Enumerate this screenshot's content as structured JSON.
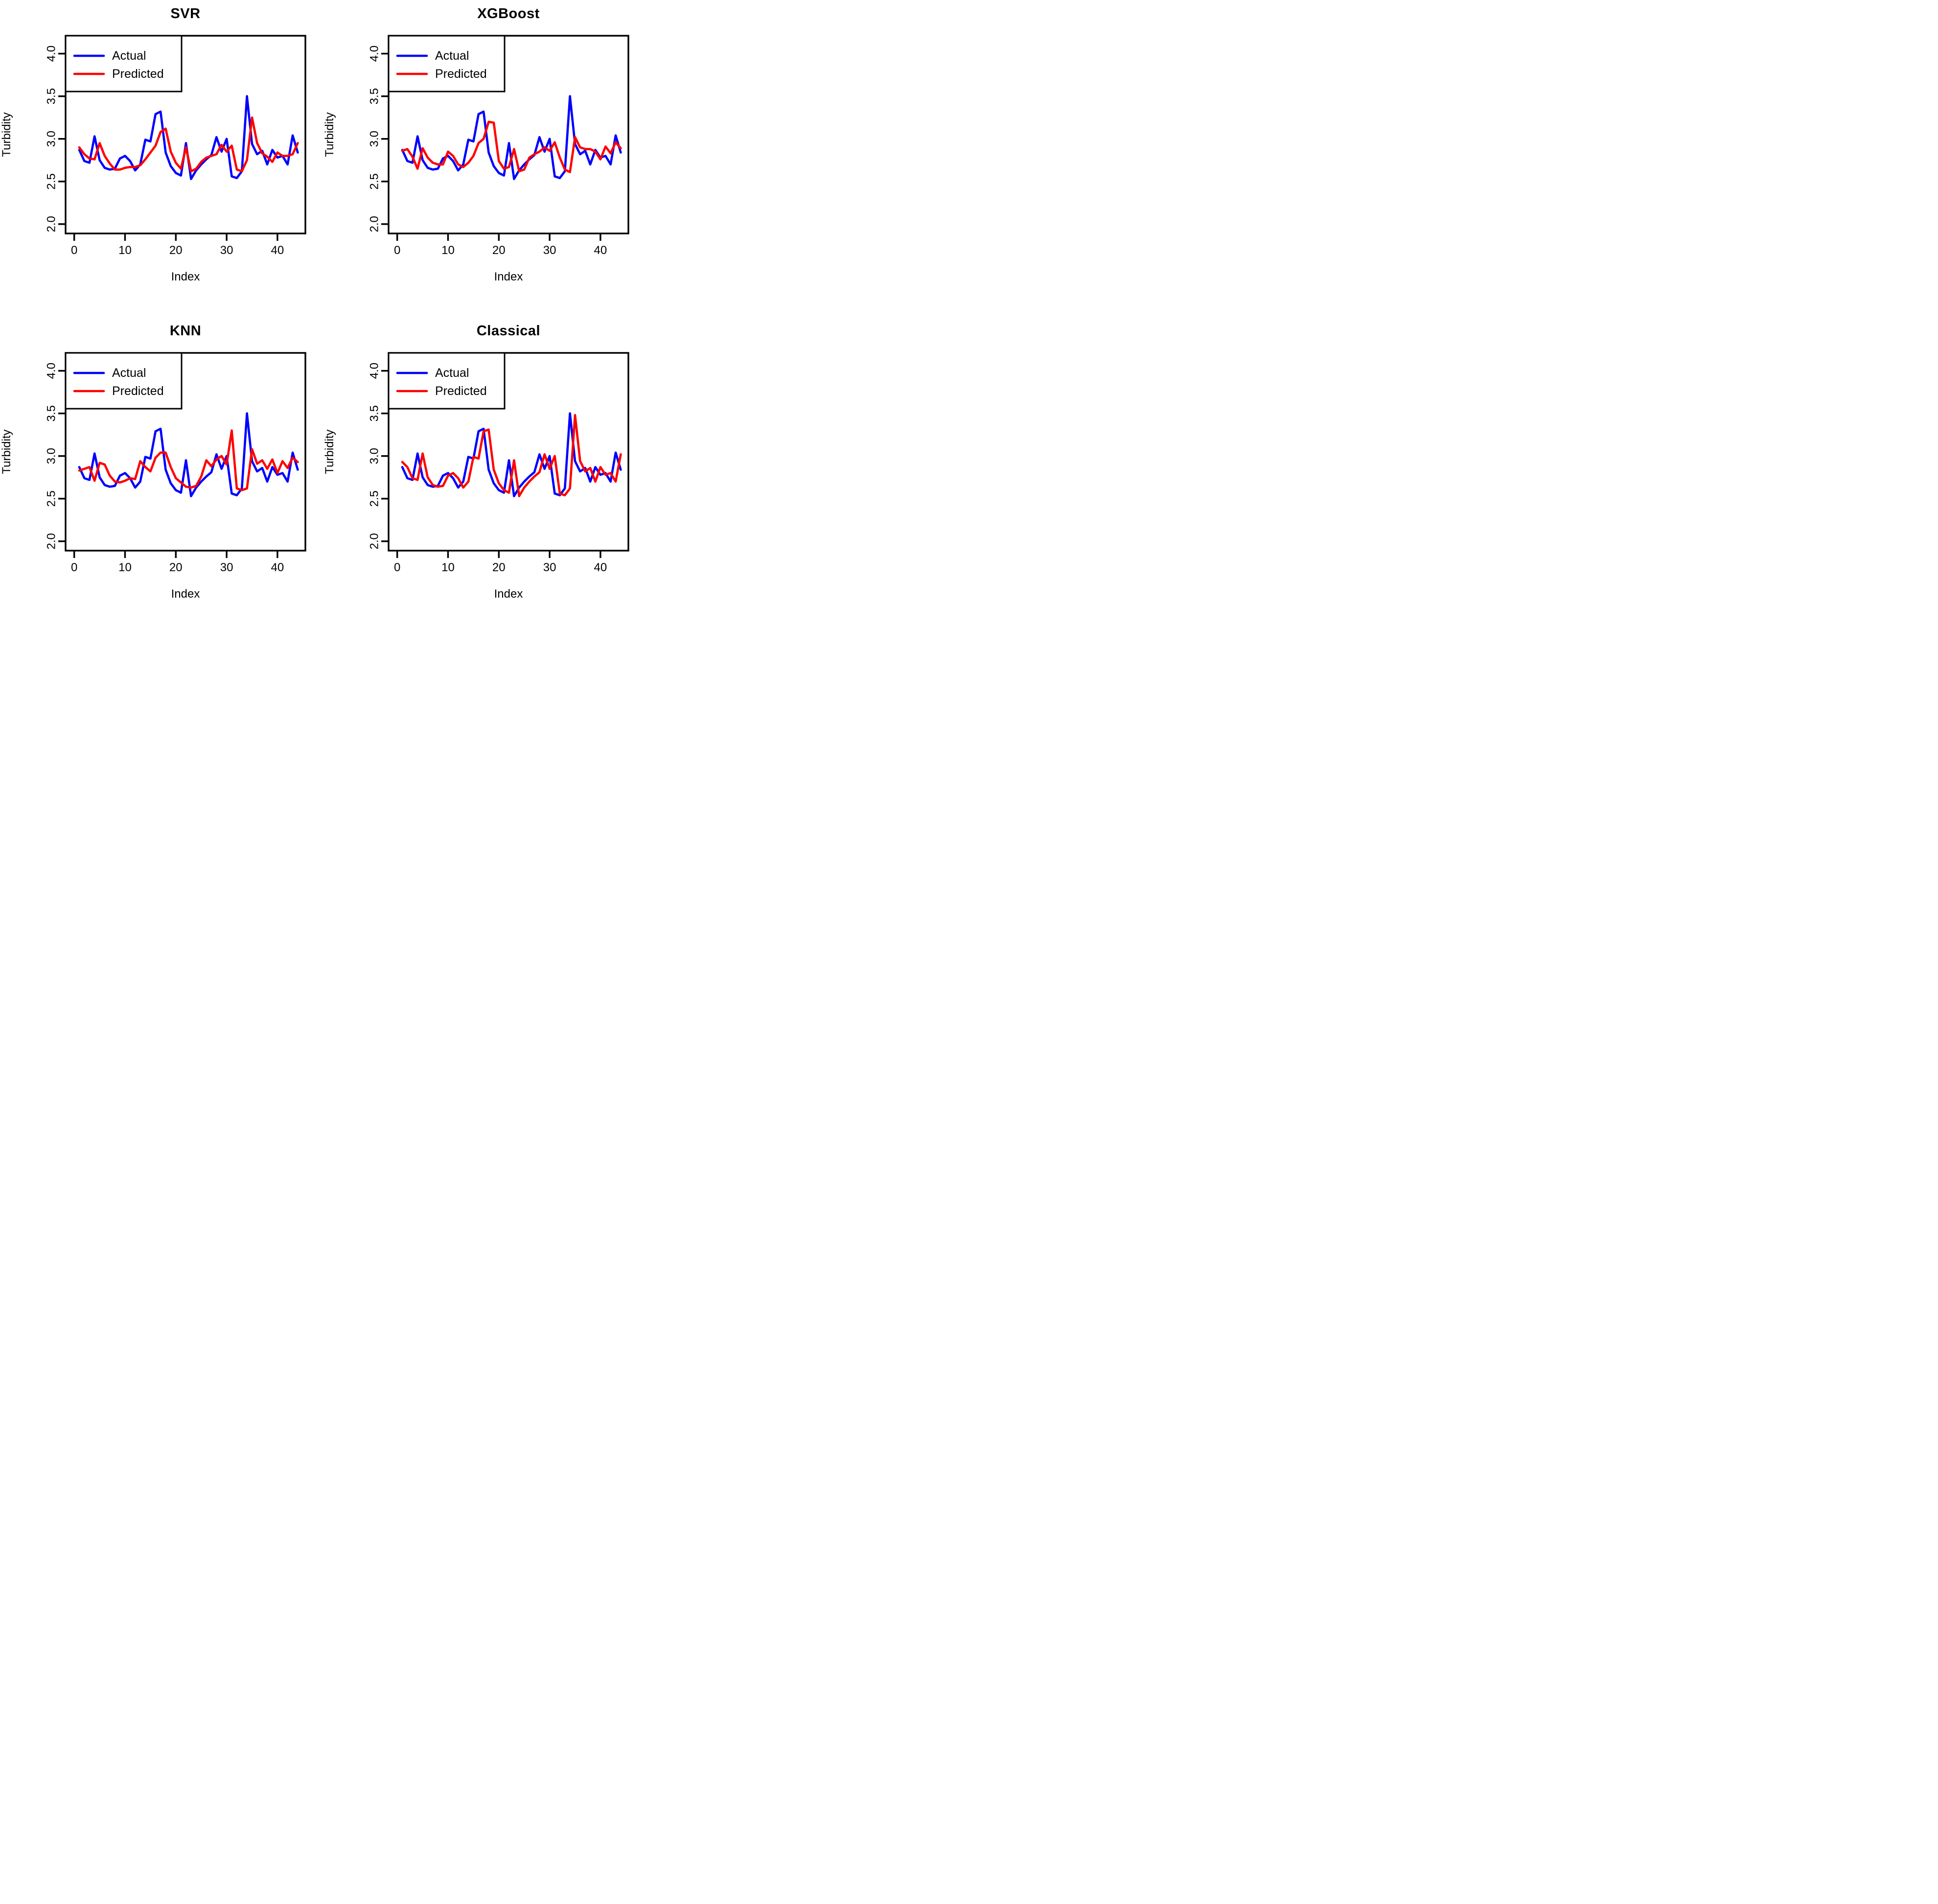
{
  "figure": {
    "background": "#FFFFFF",
    "frame_color": "#000000",
    "actual_color": "#0000FF",
    "predicted_color": "#FF0000"
  },
  "chart_data": [
    {
      "type": "line",
      "title": "SVR",
      "xlabel": "Index",
      "ylabel": "Turbidity",
      "x_start": 1,
      "xlim": [
        -1.7,
        45.5
      ],
      "ylim": [
        1.89,
        4.21
      ],
      "xticks": [
        0,
        10,
        20,
        30,
        40
      ],
      "xticklabels": [
        "0",
        "10",
        "20",
        "30",
        "40"
      ],
      "yticks": [
        2.0,
        2.5,
        3.0,
        3.5,
        4.0
      ],
      "yticklabels": [
        "2.0",
        "2.5",
        "3.0",
        "3.5",
        "4.0"
      ],
      "grid": false,
      "legend_position": "top-left",
      "legend": [
        "Actual",
        "Predicted"
      ],
      "series": [
        {
          "name": "Actual",
          "color": "#0000FF",
          "values": [
            2.87,
            2.74,
            2.72,
            3.03,
            2.75,
            2.66,
            2.64,
            2.65,
            2.77,
            2.8,
            2.74,
            2.63,
            2.7,
            2.99,
            2.97,
            3.29,
            3.32,
            2.84,
            2.68,
            2.6,
            2.57,
            2.95,
            2.53,
            2.63,
            2.7,
            2.76,
            2.81,
            3.02,
            2.85,
            3.0,
            2.56,
            2.54,
            2.62,
            3.5,
            2.94,
            2.82,
            2.86,
            2.7,
            2.87,
            2.78,
            2.8,
            2.7,
            3.04,
            2.84
          ]
        },
        {
          "name": "Predicted",
          "color": "#FF0000",
          "values": [
            2.9,
            2.82,
            2.77,
            2.76,
            2.95,
            2.8,
            2.71,
            2.64,
            2.64,
            2.66,
            2.67,
            2.67,
            2.69,
            2.76,
            2.84,
            2.92,
            3.08,
            3.12,
            2.85,
            2.72,
            2.65,
            2.9,
            2.62,
            2.65,
            2.73,
            2.78,
            2.8,
            2.82,
            2.93,
            2.85,
            2.92,
            2.64,
            2.62,
            2.75,
            3.25,
            2.95,
            2.83,
            2.79,
            2.73,
            2.84,
            2.8,
            2.8,
            2.82,
            2.95
          ]
        }
      ]
    },
    {
      "type": "line",
      "title": "XGBoost",
      "xlabel": "Index",
      "ylabel": "Turbidity",
      "x_start": 1,
      "xlim": [
        -1.7,
        45.5
      ],
      "ylim": [
        1.89,
        4.21
      ],
      "xticks": [
        0,
        10,
        20,
        30,
        40
      ],
      "xticklabels": [
        "0",
        "10",
        "20",
        "30",
        "40"
      ],
      "yticks": [
        2.0,
        2.5,
        3.0,
        3.5,
        4.0
      ],
      "yticklabels": [
        "2.0",
        "2.5",
        "3.0",
        "3.5",
        "4.0"
      ],
      "grid": false,
      "legend_position": "top-left",
      "legend": [
        "Actual",
        "Predicted"
      ],
      "series": [
        {
          "name": "Actual",
          "color": "#0000FF",
          "values": [
            2.87,
            2.74,
            2.72,
            3.03,
            2.75,
            2.66,
            2.64,
            2.65,
            2.77,
            2.8,
            2.74,
            2.63,
            2.7,
            2.99,
            2.97,
            3.29,
            3.32,
            2.84,
            2.68,
            2.6,
            2.57,
            2.95,
            2.53,
            2.63,
            2.7,
            2.76,
            2.81,
            3.02,
            2.85,
            3.0,
            2.56,
            2.54,
            2.62,
            3.5,
            2.94,
            2.82,
            2.86,
            2.7,
            2.87,
            2.78,
            2.8,
            2.7,
            3.04,
            2.84
          ]
        },
        {
          "name": "Predicted",
          "color": "#FF0000",
          "values": [
            2.86,
            2.88,
            2.79,
            2.65,
            2.89,
            2.78,
            2.72,
            2.7,
            2.7,
            2.85,
            2.8,
            2.7,
            2.67,
            2.72,
            2.8,
            2.95,
            3.0,
            3.2,
            3.19,
            2.74,
            2.65,
            2.67,
            2.88,
            2.62,
            2.64,
            2.78,
            2.82,
            2.85,
            2.9,
            2.86,
            2.96,
            2.78,
            2.64,
            2.61,
            3.02,
            2.9,
            2.88,
            2.88,
            2.85,
            2.76,
            2.91,
            2.83,
            2.96,
            2.89
          ]
        }
      ]
    },
    {
      "type": "line",
      "title": "KNN",
      "xlabel": "Index",
      "ylabel": "Turbidity",
      "x_start": 1,
      "xlim": [
        -1.7,
        45.5
      ],
      "ylim": [
        1.89,
        4.21
      ],
      "xticks": [
        0,
        10,
        20,
        30,
        40
      ],
      "xticklabels": [
        "0",
        "10",
        "20",
        "30",
        "40"
      ],
      "yticks": [
        2.0,
        2.5,
        3.0,
        3.5,
        4.0
      ],
      "yticklabels": [
        "2.0",
        "2.5",
        "3.0",
        "3.5",
        "4.0"
      ],
      "grid": false,
      "legend_position": "top-left",
      "legend": [
        "Actual",
        "Predicted"
      ],
      "series": [
        {
          "name": "Actual",
          "color": "#0000FF",
          "values": [
            2.87,
            2.74,
            2.72,
            3.03,
            2.75,
            2.66,
            2.64,
            2.65,
            2.77,
            2.8,
            2.74,
            2.63,
            2.7,
            2.99,
            2.97,
            3.29,
            3.32,
            2.84,
            2.68,
            2.6,
            2.57,
            2.95,
            2.53,
            2.63,
            2.7,
            2.76,
            2.81,
            3.02,
            2.85,
            3.0,
            2.56,
            2.54,
            2.62,
            3.5,
            2.94,
            2.82,
            2.86,
            2.7,
            2.87,
            2.78,
            2.8,
            2.7,
            3.04,
            2.84
          ]
        },
        {
          "name": "Predicted",
          "color": "#FF0000",
          "values": [
            2.83,
            2.85,
            2.87,
            2.71,
            2.92,
            2.9,
            2.77,
            2.7,
            2.69,
            2.71,
            2.74,
            2.73,
            2.94,
            2.87,
            2.82,
            2.98,
            3.04,
            3.04,
            2.87,
            2.74,
            2.69,
            2.64,
            2.63,
            2.65,
            2.76,
            2.95,
            2.88,
            2.96,
            3.0,
            2.9,
            3.3,
            2.62,
            2.6,
            2.62,
            3.08,
            2.91,
            2.95,
            2.85,
            2.96,
            2.8,
            2.94,
            2.86,
            2.98,
            2.93
          ]
        }
      ]
    },
    {
      "type": "line",
      "title": "Classical",
      "xlabel": "Index",
      "ylabel": "Turbidity",
      "x_start": 1,
      "xlim": [
        -1.7,
        45.5
      ],
      "ylim": [
        1.89,
        4.21
      ],
      "xticks": [
        0,
        10,
        20,
        30,
        40
      ],
      "xticklabels": [
        "0",
        "10",
        "20",
        "30",
        "40"
      ],
      "yticks": [
        2.0,
        2.5,
        3.0,
        3.5,
        4.0
      ],
      "yticklabels": [
        "2.0",
        "2.5",
        "3.0",
        "3.5",
        "4.0"
      ],
      "grid": false,
      "legend_position": "top-left",
      "legend": [
        "Actual",
        "Predicted"
      ],
      "series": [
        {
          "name": "Actual",
          "color": "#0000FF",
          "values": [
            2.87,
            2.74,
            2.72,
            3.03,
            2.75,
            2.66,
            2.64,
            2.65,
            2.77,
            2.8,
            2.74,
            2.63,
            2.7,
            2.99,
            2.97,
            3.29,
            3.32,
            2.84,
            2.68,
            2.6,
            2.57,
            2.95,
            2.53,
            2.63,
            2.7,
            2.76,
            2.81,
            3.02,
            2.85,
            3.0,
            2.56,
            2.54,
            2.62,
            3.5,
            2.94,
            2.82,
            2.86,
            2.7,
            2.87,
            2.78,
            2.8,
            2.7,
            3.04,
            2.84
          ]
        },
        {
          "name": "Predicted",
          "color": "#FF0000",
          "values": [
            2.93,
            2.87,
            2.74,
            2.72,
            3.03,
            2.75,
            2.66,
            2.64,
            2.65,
            2.77,
            2.8,
            2.74,
            2.63,
            2.7,
            2.99,
            2.97,
            3.29,
            3.31,
            2.84,
            2.68,
            2.6,
            2.57,
            2.95,
            2.53,
            2.63,
            2.7,
            2.76,
            2.81,
            3.02,
            2.85,
            3.0,
            2.56,
            2.54,
            2.62,
            3.48,
            2.94,
            2.82,
            2.86,
            2.7,
            2.87,
            2.78,
            2.8,
            2.7,
            3.02
          ]
        }
      ]
    }
  ]
}
